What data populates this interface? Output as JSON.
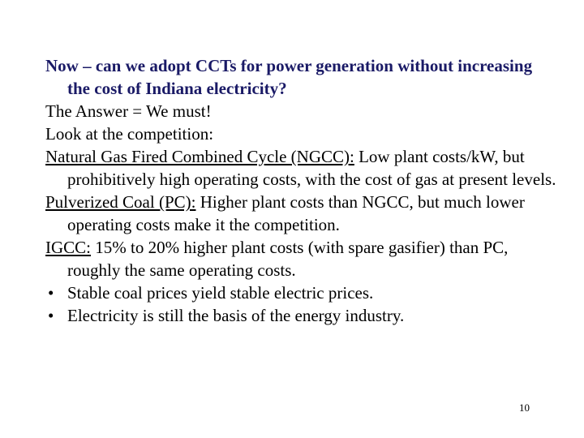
{
  "slide": {
    "heading": "Now – can we adopt CCTs for power generation without increasing the cost of Indiana electricity?",
    "answer": "The Answer = We must!",
    "competition_intro": "Look at the competition:",
    "items": [
      {
        "label": "Natural Gas Fired Combined Cycle (NGCC):",
        "text": "  Low plant costs/kW, but prohibitively high operating costs, with the cost of gas at present levels."
      },
      {
        "label": "Pulverized Coal (PC):",
        "text": " Higher plant costs than NGCC, but much lower operating costs make it the competition."
      },
      {
        "label": "IGCC:",
        "text": "  15% to 20% higher plant costs (with spare gasifier) than PC, roughly the same operating costs."
      }
    ],
    "bullets": [
      "Stable coal prices yield stable electric prices.",
      "Electricity is still the basis of the energy industry."
    ],
    "bullet_glyph": "•",
    "page_number": "10"
  },
  "colors": {
    "heading": "#1a1a66",
    "body": "#000000",
    "background": "#ffffff"
  }
}
